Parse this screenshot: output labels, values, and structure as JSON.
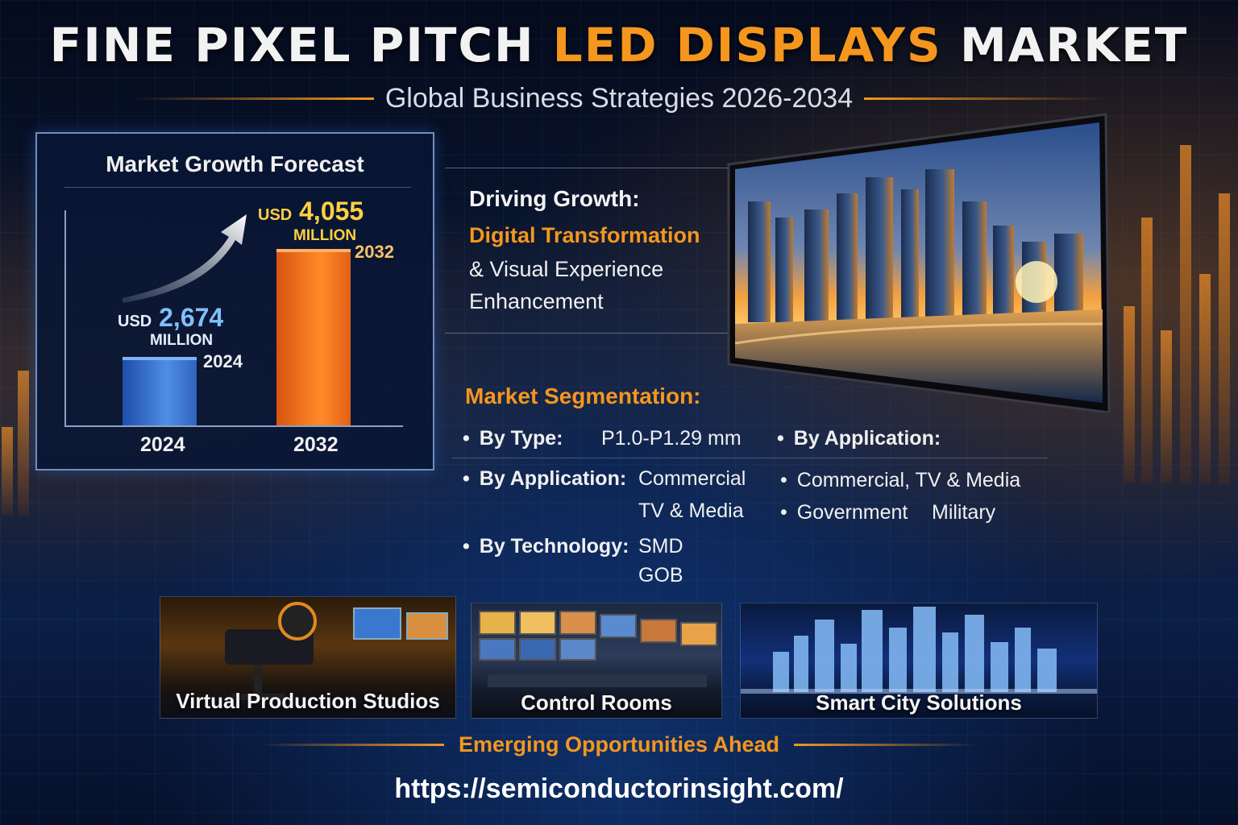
{
  "title": {
    "part1": "FINE PIXEL PITCH ",
    "part2": "LED DISPLAYS",
    "part3": " MARKET"
  },
  "subtitle": "Global Business Strategies 2026-2034",
  "forecast": {
    "title": "Market Growth Forecast",
    "bars": [
      {
        "currency": "USD",
        "value": "2,674",
        "unit": "MILLION",
        "year_label": "2024",
        "axis_label": "2024",
        "amount_musd": 2674
      },
      {
        "currency": "USD",
        "value": "4,055",
        "unit": "MILLION",
        "year_label": "2032",
        "axis_label": "2032",
        "amount_musd": 4055
      }
    ]
  },
  "driving": {
    "heading": "Driving Growth:",
    "highlight": "Digital Transformation",
    "line2": "& Visual Experience",
    "line3": "Enhancement"
  },
  "segmentation": {
    "title": "Market Segmentation:",
    "type_label": "By Type:",
    "type_value": "P1.0-P1.29 mm",
    "app_label_right": "By Application:",
    "app_label": "By Application:",
    "app_values": [
      "Commercial",
      "TV & Media"
    ],
    "right_items": [
      "Commercial,  TV & Media",
      "Government",
      "Military"
    ],
    "tech_label": "By Technology:",
    "tech_values": [
      "SMD",
      "GOB"
    ]
  },
  "tiles": [
    {
      "label": "Virtual Production Studios"
    },
    {
      "label": "Control Rooms"
    },
    {
      "label": "Smart City Solutions"
    }
  ],
  "emerging": "Emerging Opportunities Ahead",
  "url": "https://semiconductorinsight.com/",
  "colors": {
    "accent": "#f5961e",
    "blue_bar": "#4f8ee6",
    "orange_bar": "#ff8a2a",
    "value_blue": "#7fc0ff",
    "value_gold": "#ffd040"
  }
}
